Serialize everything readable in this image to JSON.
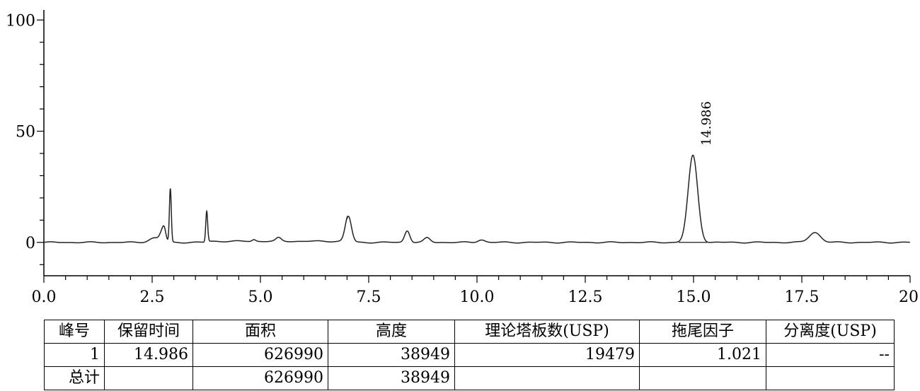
{
  "chart_data": {
    "type": "line",
    "title": "",
    "xlabel": "",
    "ylabel": "",
    "xlim": [
      0,
      20
    ],
    "ylim": [
      -15,
      102
    ],
    "x_ticks": [
      0,
      2.5,
      5,
      7.5,
      10,
      12.5,
      15,
      17.5,
      20
    ],
    "x_tick_labels": [
      "0.0",
      "2.5",
      "5.0",
      "7.5",
      "10.0",
      "12.5",
      "15.0",
      "17.5",
      "20"
    ],
    "y_ticks": [
      0,
      50,
      100
    ],
    "y_tick_labels": [
      "0",
      "50",
      "100"
    ],
    "grid": false,
    "legend": "none",
    "line_color": "#222222",
    "baseline": 0,
    "peaks": [
      {
        "rt": 2.55,
        "height": 2.0,
        "width": 0.12
      },
      {
        "rt": 2.72,
        "height": 3.5,
        "width": 0.05
      },
      {
        "rt": 2.78,
        "height": 5.0,
        "width": 0.04
      },
      {
        "rt": 2.92,
        "height": 24.0,
        "width": 0.022
      },
      {
        "rt": 3.76,
        "height": 14.0,
        "width": 0.022
      },
      {
        "rt": 4.85,
        "height": 0.8,
        "width": 0.04
      },
      {
        "rt": 5.42,
        "height": 1.5,
        "width": 0.06
      },
      {
        "rt": 7.03,
        "height": 11.7,
        "width": 0.07
      },
      {
        "rt": 8.39,
        "height": 5.3,
        "width": 0.06
      },
      {
        "rt": 8.85,
        "height": 2.0,
        "width": 0.07
      },
      {
        "rt": 10.1,
        "height": 1.2,
        "width": 0.08
      },
      {
        "rt": 14.986,
        "height": 39.0,
        "width": 0.11,
        "label": "14.986",
        "integrated": true
      },
      {
        "rt": 17.8,
        "height": 4.5,
        "width": 0.13
      }
    ],
    "annotations": [
      "14.986"
    ]
  },
  "table": {
    "headers": [
      "峰号",
      "保留时间",
      "面积",
      "高度",
      "理论塔板数(USP)",
      "拖尾因子",
      "分离度(USP)"
    ],
    "rows": [
      [
        "1",
        "14.986",
        "626990",
        "38949",
        "19479",
        "1.021",
        "--"
      ],
      [
        "总计",
        "",
        "626990",
        "38949",
        "",
        "",
        ""
      ]
    ]
  }
}
